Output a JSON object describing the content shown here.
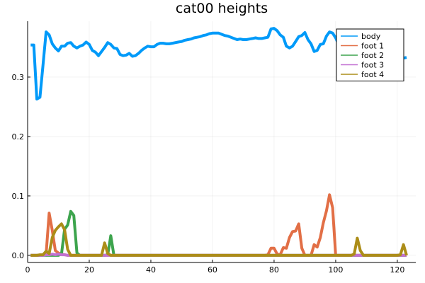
{
  "chart_data": {
    "type": "line",
    "title": "cat00 heights",
    "xlabel": "",
    "ylabel": "",
    "xlim": [
      0,
      126
    ],
    "ylim": [
      -0.012,
      0.394
    ],
    "xticks": [
      0,
      20,
      40,
      60,
      80,
      100,
      120
    ],
    "xtick_labels": [
      "0",
      "20",
      "40",
      "60",
      "80",
      "100",
      "120"
    ],
    "yticks": [
      0,
      0.1,
      0.2,
      0.3
    ],
    "ytick_labels": [
      "0.0",
      "0.1",
      "0.2",
      "0.3"
    ],
    "grid": true,
    "legend_position": "top-right",
    "series": [
      {
        "name": "body",
        "color": "#009af9",
        "x": [
          1,
          2,
          3,
          4,
          5,
          6,
          7,
          8,
          9,
          10,
          11,
          12,
          13,
          14,
          15,
          16,
          17,
          18,
          19,
          20,
          21,
          22,
          23,
          24,
          25,
          26,
          27,
          28,
          29,
          30,
          31,
          32,
          33,
          34,
          35,
          36,
          37,
          38,
          39,
          40,
          41,
          42,
          43,
          44,
          45,
          46,
          47,
          48,
          49,
          50,
          51,
          52,
          53,
          54,
          55,
          56,
          57,
          58,
          59,
          60,
          61,
          62,
          63,
          64,
          65,
          66,
          67,
          68,
          69,
          70,
          71,
          72,
          73,
          74,
          75,
          76,
          77,
          78,
          79,
          80,
          81,
          82,
          83,
          84,
          85,
          86,
          87,
          88,
          89,
          90,
          91,
          92,
          93,
          94,
          95,
          96,
          97,
          98,
          99,
          100,
          101,
          102,
          103,
          104,
          105,
          106,
          107,
          108,
          109,
          110,
          111,
          112,
          113,
          114,
          115,
          116,
          117,
          118,
          119,
          120,
          121,
          122,
          123
        ],
        "values": [
          0.354,
          0.354,
          0.263,
          0.266,
          0.32,
          0.376,
          0.371,
          0.356,
          0.349,
          0.344,
          0.352,
          0.352,
          0.357,
          0.358,
          0.352,
          0.349,
          0.352,
          0.354,
          0.359,
          0.355,
          0.345,
          0.342,
          0.336,
          0.343,
          0.35,
          0.358,
          0.355,
          0.349,
          0.348,
          0.338,
          0.336,
          0.337,
          0.34,
          0.335,
          0.336,
          0.34,
          0.345,
          0.349,
          0.352,
          0.351,
          0.351,
          0.355,
          0.357,
          0.357,
          0.356,
          0.356,
          0.357,
          0.358,
          0.359,
          0.36,
          0.362,
          0.363,
          0.364,
          0.366,
          0.367,
          0.368,
          0.37,
          0.371,
          0.373,
          0.374,
          0.374,
          0.374,
          0.372,
          0.37,
          0.369,
          0.367,
          0.365,
          0.363,
          0.364,
          0.363,
          0.363,
          0.364,
          0.365,
          0.366,
          0.365,
          0.365,
          0.366,
          0.367,
          0.381,
          0.382,
          0.378,
          0.371,
          0.367,
          0.352,
          0.349,
          0.352,
          0.36,
          0.368,
          0.37,
          0.375,
          0.363,
          0.356,
          0.343,
          0.345,
          0.355,
          0.356,
          0.369,
          0.376,
          0.374,
          0.366,
          0.354,
          0.36,
          0.363,
          0.356,
          0.351,
          0.348,
          0.343,
          0.338,
          0.333,
          0.33,
          0.33,
          0.331,
          0.333,
          0.336,
          0.338,
          0.339,
          0.34,
          0.339,
          0.336,
          0.335,
          0.333,
          0.332,
          0.333
        ]
      },
      {
        "name": "foot 1",
        "color": "#e26f46",
        "x": [
          1,
          2,
          3,
          4,
          5,
          6,
          7,
          8,
          9,
          10,
          11,
          12,
          13,
          20,
          30,
          40,
          50,
          60,
          70,
          76,
          77,
          78,
          79,
          80,
          81,
          82,
          83,
          84,
          85,
          86,
          87,
          88,
          89,
          90,
          91,
          92,
          93,
          94,
          95,
          96,
          97,
          98,
          99,
          100,
          101,
          110,
          120,
          123
        ],
        "values": [
          0,
          0,
          0,
          0,
          0,
          0.002,
          0.071,
          0.042,
          0.008,
          0.004,
          0.002,
          0.001,
          0,
          0,
          0,
          0,
          0,
          0,
          0,
          0,
          0,
          0.001,
          0.012,
          0.012,
          0.002,
          0.001,
          0.013,
          0.012,
          0.03,
          0.04,
          0.041,
          0.053,
          0.012,
          0,
          0,
          0,
          0.018,
          0.014,
          0.03,
          0.055,
          0.075,
          0.102,
          0.08,
          0,
          0,
          0,
          0,
          0
        ]
      },
      {
        "name": "foot 2",
        "color": "#3da44d",
        "x": [
          1,
          8,
          9,
          10,
          11,
          12,
          13,
          14,
          15,
          16,
          17,
          18,
          25,
          26,
          27,
          28,
          29,
          30,
          40,
          50,
          60,
          70,
          80,
          90,
          100,
          110,
          120,
          123
        ],
        "values": [
          0,
          0,
          0,
          0,
          0.002,
          0.044,
          0.051,
          0.074,
          0.067,
          0.004,
          0,
          0,
          0,
          0.001,
          0.033,
          0,
          0,
          0,
          0,
          0,
          0,
          0,
          0,
          0,
          0,
          0,
          0,
          0
        ]
      },
      {
        "name": "foot 3",
        "color": "#c271d2",
        "x": [
          1,
          5,
          6,
          7,
          8,
          9,
          10,
          11,
          12,
          13,
          20,
          40,
          60,
          80,
          100,
          120,
          123
        ],
        "values": [
          0,
          0,
          0.001,
          0.001,
          0.002,
          0.001,
          0.002,
          0.001,
          0.001,
          0,
          0,
          0,
          0,
          0,
          0,
          0,
          0
        ]
      },
      {
        "name": "foot 4",
        "color": "#ac8d18",
        "x": [
          1,
          2,
          3,
          4,
          5,
          6,
          7,
          8,
          9,
          10,
          11,
          12,
          13,
          14,
          20,
          24,
          25,
          26,
          27,
          30,
          40,
          50,
          60,
          70,
          80,
          90,
          100,
          105,
          106,
          107,
          108,
          109,
          110,
          120,
          121,
          122,
          123
        ],
        "values": [
          0,
          0,
          0,
          0.001,
          0.001,
          0.007,
          0.003,
          0.03,
          0.042,
          0.048,
          0.053,
          0.043,
          0.01,
          0,
          0,
          0,
          0.021,
          0.003,
          0,
          0,
          0,
          0,
          0,
          0,
          0,
          0,
          0,
          0,
          0.002,
          0.029,
          0.008,
          0,
          0,
          0,
          0.001,
          0.018,
          0
        ]
      }
    ]
  }
}
